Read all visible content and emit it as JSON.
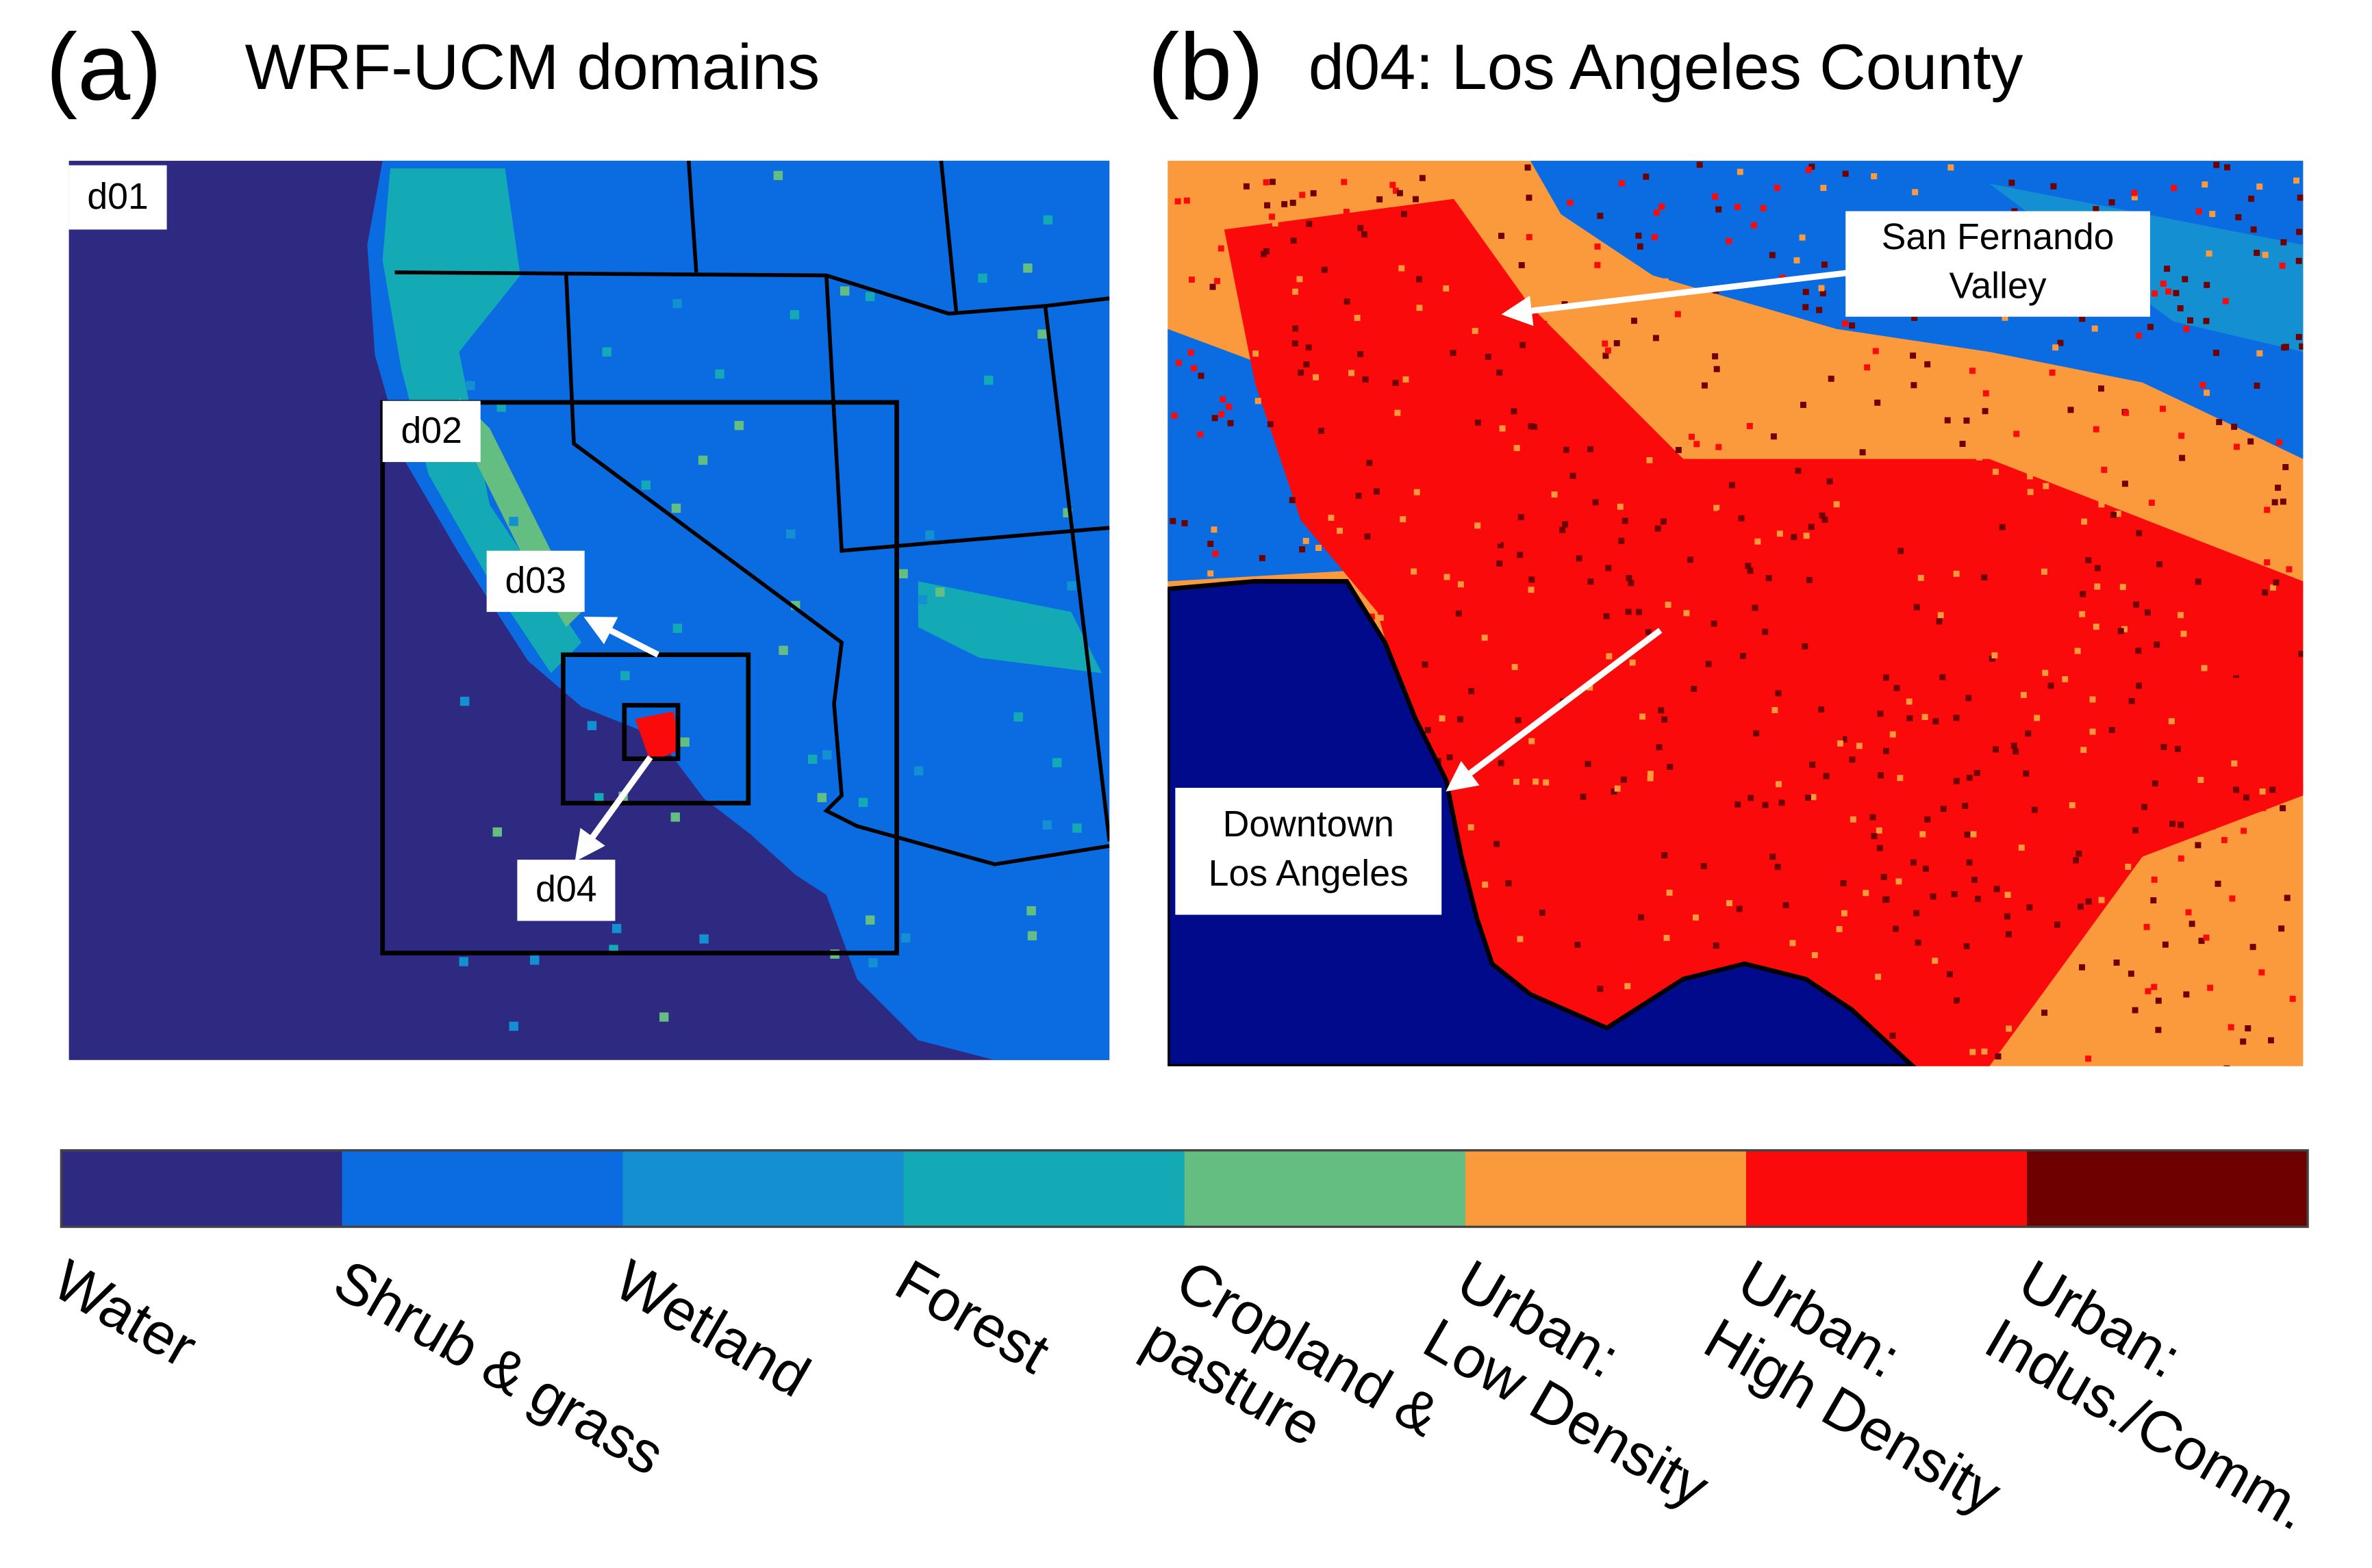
{
  "panel_a": {
    "label": "(a)",
    "title": "WRF-UCM domains",
    "domains": [
      "d01",
      "d02",
      "d03",
      "d04"
    ]
  },
  "panel_b": {
    "label": "(b)",
    "title": "d04: Los Angeles County",
    "annotations": [
      {
        "lines": [
          "San Fernando",
          "Valley"
        ]
      },
      {
        "lines": [
          "Downtown",
          "Los Angeles"
        ]
      }
    ]
  },
  "legend": {
    "items": [
      {
        "lines": [
          "Water"
        ],
        "color": "#2e2a82"
      },
      {
        "lines": [
          "Shrub & grass"
        ],
        "color": "#0a6ce0"
      },
      {
        "lines": [
          "Wetland"
        ],
        "color": "#138fd2"
      },
      {
        "lines": [
          "Forest"
        ],
        "color": "#14aab5"
      },
      {
        "lines": [
          "Cropland &",
          "pasture"
        ],
        "color": "#64be82"
      },
      {
        "lines": [
          "Urban:",
          "Low Density"
        ],
        "color": "#fa9a3c"
      },
      {
        "lines": [
          "Urban:",
          "High Density"
        ],
        "color": "#fa0a0a"
      },
      {
        "lines": [
          "Urban:",
          "Indus./Comm."
        ],
        "color": "#6e0000"
      }
    ]
  }
}
